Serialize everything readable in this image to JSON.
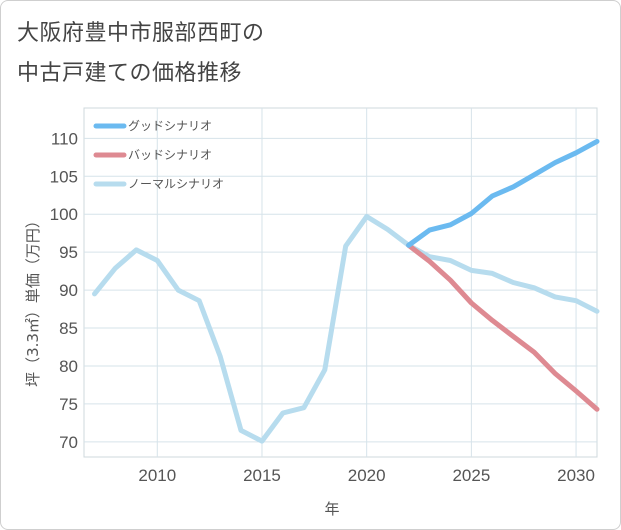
{
  "title_lines": [
    "大阪府豊中市服部西町の",
    "中古戸建ての価格推移"
  ],
  "chart_data": {
    "type": "line",
    "xlabel": "年",
    "ylabel": "坪（3.3㎡）単価（万円）",
    "xlim": [
      2006.5,
      2031
    ],
    "ylim": [
      68,
      114
    ],
    "x_ticks": [
      2010,
      2015,
      2020,
      2025,
      2030
    ],
    "y_ticks": [
      70,
      75,
      80,
      85,
      90,
      95,
      100,
      105,
      110
    ],
    "grid": true,
    "legend_position": "top-left",
    "series": [
      {
        "name": "グッドシナリオ",
        "color": "#6bbaf0",
        "x": [
          2022,
          2023,
          2024,
          2025,
          2026,
          2027,
          2028,
          2029,
          2030,
          2031
        ],
        "values": [
          95.9,
          97.9,
          98.6,
          100.1,
          102.4,
          103.6,
          105.2,
          106.8,
          108.1,
          109.6
        ]
      },
      {
        "name": "バッドシナリオ",
        "color": "#de8a92",
        "x": [
          2022,
          2023,
          2024,
          2025,
          2026,
          2027,
          2028,
          2029,
          2030,
          2031
        ],
        "values": [
          95.9,
          93.8,
          91.3,
          88.3,
          86.0,
          83.9,
          81.8,
          79.0,
          76.7,
          74.3
        ]
      },
      {
        "name": "ノーマルシナリオ",
        "color": "#b7dcee",
        "x": [
          2007,
          2008,
          2009,
          2010,
          2011,
          2012,
          2013,
          2014,
          2015,
          2016,
          2017,
          2018,
          2019,
          2020,
          2021,
          2022,
          2023,
          2024,
          2025,
          2026,
          2027,
          2028,
          2029,
          2030,
          2031
        ],
        "values": [
          89.5,
          92.9,
          95.3,
          93.9,
          90.0,
          88.6,
          81.3,
          71.5,
          70.1,
          73.8,
          74.5,
          79.5,
          95.8,
          99.7,
          98.0,
          95.9,
          94.4,
          93.9,
          92.6,
          92.2,
          91.0,
          90.3,
          89.1,
          88.6,
          87.2
        ]
      }
    ]
  }
}
